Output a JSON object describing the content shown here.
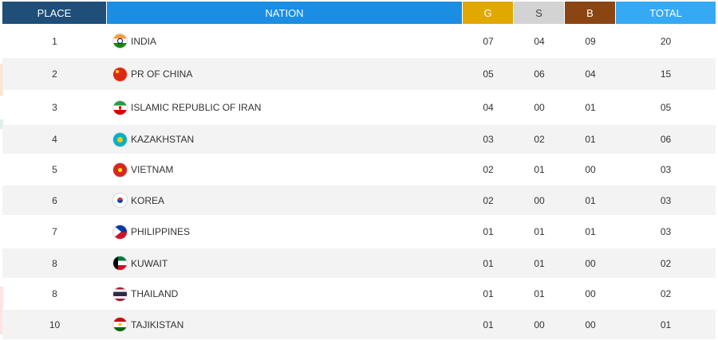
{
  "header": {
    "place": "PLACE",
    "nation": "NATION",
    "gold": "G",
    "silver": "S",
    "bronze": "B",
    "total": "TOTAL"
  },
  "colors": {
    "place_header": "#1f4e79",
    "nation_header": "#1b8de3",
    "gold": "#e0a800",
    "silver": "#d3d3d3",
    "bronze": "#8b4513",
    "total_header": "#36a9f5"
  },
  "rows": [
    {
      "place": "1",
      "nation": "INDIA",
      "flag": "india-flag-icon",
      "gold": "07",
      "silver": "04",
      "bronze": "09",
      "total": "20"
    },
    {
      "place": "2",
      "nation": "PR OF CHINA",
      "flag": "china-flag-icon",
      "gold": "05",
      "silver": "06",
      "bronze": "04",
      "total": "15"
    },
    {
      "place": "3",
      "nation": "ISLAMIC REPUBLIC OF IRAN",
      "flag": "iran-flag-icon",
      "gold": "04",
      "silver": "00",
      "bronze": "01",
      "total": "05"
    },
    {
      "place": "4",
      "nation": "KAZAKHSTAN",
      "flag": "kazakhstan-flag-icon",
      "gold": "03",
      "silver": "02",
      "bronze": "01",
      "total": "06"
    },
    {
      "place": "5",
      "nation": "VIETNAM",
      "flag": "vietnam-flag-icon",
      "gold": "02",
      "silver": "01",
      "bronze": "00",
      "total": "03"
    },
    {
      "place": "6",
      "nation": "KOREA",
      "flag": "korea-flag-icon",
      "gold": "02",
      "silver": "00",
      "bronze": "01",
      "total": "03"
    },
    {
      "place": "7",
      "nation": "PHILIPPINES",
      "flag": "philippines-flag-icon",
      "gold": "01",
      "silver": "01",
      "bronze": "01",
      "total": "03"
    },
    {
      "place": "8",
      "nation": "KUWAIT",
      "flag": "kuwait-flag-icon",
      "gold": "01",
      "silver": "01",
      "bronze": "00",
      "total": "02"
    },
    {
      "place": "8",
      "nation": "THAILAND",
      "flag": "thailand-flag-icon",
      "gold": "01",
      "silver": "01",
      "bronze": "00",
      "total": "02"
    },
    {
      "place": "10",
      "nation": "TAJIKISTAN",
      "flag": "tajikistan-flag-icon",
      "gold": "01",
      "silver": "00",
      "bronze": "00",
      "total": "01"
    }
  ]
}
